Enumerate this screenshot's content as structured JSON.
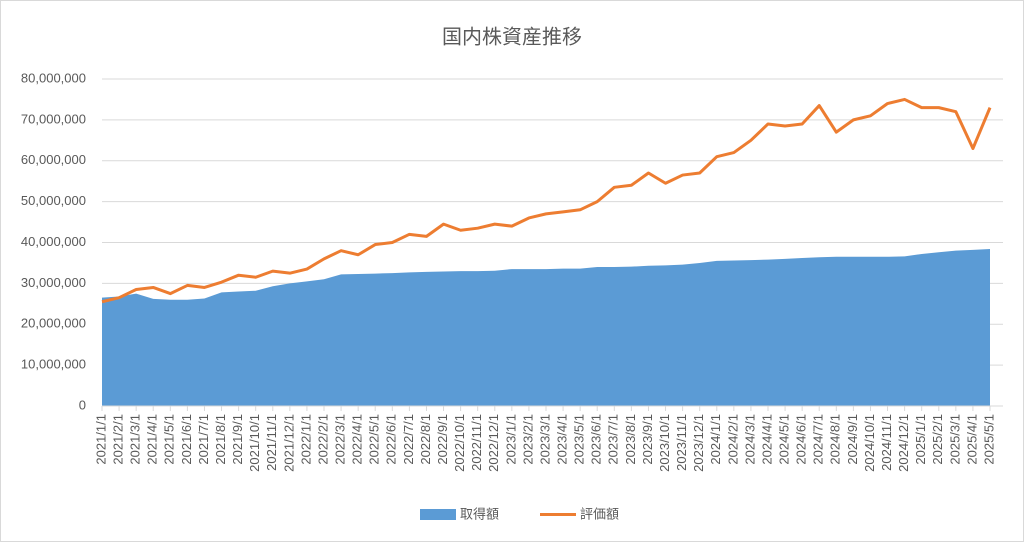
{
  "chart_data": {
    "type": "area_line",
    "title": "国内株資産推移",
    "categories": [
      "2021/1/1",
      "2021/2/1",
      "2021/3/1",
      "2021/4/1",
      "2021/5/1",
      "2021/6/1",
      "2021/7/1",
      "2021/8/1",
      "2021/9/1",
      "2021/10/1",
      "2021/11/1",
      "2021/12/1",
      "2022/1/1",
      "2022/2/1",
      "2022/3/1",
      "2022/4/1",
      "2022/5/1",
      "2022/6/1",
      "2022/7/1",
      "2022/8/1",
      "2022/9/1",
      "2022/10/1",
      "2022/11/1",
      "2022/12/1",
      "2023/1/1",
      "2023/2/1",
      "2023/3/1",
      "2023/4/1",
      "2023/5/1",
      "2023/6/1",
      "2023/7/1",
      "2023/8/1",
      "2023/9/1",
      "2023/10/1",
      "2023/11/1",
      "2023/12/1",
      "2024/1/1",
      "2024/2/1",
      "2024/3/1",
      "2024/4/1",
      "2024/5/1",
      "2024/6/1",
      "2024/7/1",
      "2024/8/1",
      "2024/9/1",
      "2024/10/1",
      "2024/11/1",
      "2024/12/1",
      "2025/1/1",
      "2025/2/1",
      "2025/3/1",
      "2025/4/1",
      "2025/5/1"
    ],
    "series": [
      {
        "name": "取得額",
        "kind": "area",
        "color": "#5b9bd5",
        "values": [
          26500000,
          26800000,
          27500000,
          26200000,
          26000000,
          26000000,
          26300000,
          27800000,
          28000000,
          28200000,
          29300000,
          30000000,
          30500000,
          31000000,
          32200000,
          32300000,
          32400000,
          32500000,
          32700000,
          32800000,
          32900000,
          33000000,
          33000000,
          33100000,
          33500000,
          33500000,
          33500000,
          33600000,
          33600000,
          34000000,
          34000000,
          34100000,
          34300000,
          34400000,
          34600000,
          35000000,
          35500000,
          35600000,
          35700000,
          35800000,
          36000000,
          36200000,
          36400000,
          36500000,
          36500000,
          36500000,
          36500000,
          36600000,
          37200000,
          37600000,
          38000000,
          38200000,
          38400000
        ]
      },
      {
        "name": "評価額",
        "kind": "line",
        "color": "#ed7d31",
        "values": [
          25500000,
          26500000,
          28500000,
          29000000,
          27500000,
          29500000,
          29000000,
          30300000,
          32000000,
          31500000,
          33000000,
          32500000,
          33500000,
          36000000,
          38000000,
          37000000,
          39500000,
          40000000,
          42000000,
          41500000,
          44500000,
          43000000,
          43500000,
          44500000,
          44000000,
          46000000,
          47000000,
          47500000,
          48000000,
          50000000,
          53500000,
          54000000,
          57000000,
          54500000,
          56500000,
          57000000,
          61000000,
          62000000,
          65000000,
          69000000,
          68500000,
          69000000,
          73500000,
          67000000,
          70000000,
          71000000,
          74000000,
          75000000,
          73000000,
          73000000,
          72000000,
          63000000,
          73000000
        ]
      }
    ],
    "ylim": [
      0,
      80000000
    ],
    "yticks": [
      0,
      {
        "value": 10000000,
        "label": "10,000,000"
      },
      {
        "value": 20000000,
        "label": "20,000,000"
      },
      {
        "value": 30000000,
        "label": "30,000,000"
      },
      {
        "value": 40000000,
        "label": "40,000,000"
      },
      {
        "value": 50000000,
        "label": "50,000,000"
      },
      {
        "value": 60000000,
        "label": "60,000,000"
      },
      {
        "value": 70000000,
        "label": "70,000,000"
      },
      {
        "value": 80000000,
        "label": "80,000,000"
      }
    ],
    "grid": true,
    "legend": "bottom"
  }
}
